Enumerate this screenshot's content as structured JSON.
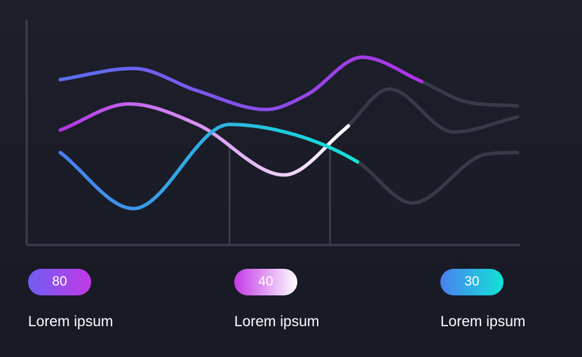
{
  "chart_data": {
    "type": "line",
    "title": "",
    "xlabel": "",
    "ylabel": "",
    "xlim": [
      0,
      10
    ],
    "ylim": [
      0,
      10
    ],
    "grid": false,
    "series": [
      {
        "id": "purple",
        "x": [
          0,
          1.6,
          3,
          4.5,
          5.4,
          6.6,
          7.9,
          8.9,
          10
        ],
        "y": [
          7.8,
          8.4,
          7.2,
          6.2,
          7.0,
          9.0,
          7.7,
          6.6,
          6.4
        ],
        "gradient": [
          "#5b6ff0",
          "#b133e6"
        ],
        "active_until": 7.9
      },
      {
        "id": "pink",
        "x": [
          0,
          1.5,
          3,
          4.9,
          6.2,
          7.2,
          8.6,
          10
        ],
        "y": [
          5.1,
          6.5,
          5.4,
          2.7,
          5.1,
          7.3,
          5.0,
          5.8
        ],
        "gradient": [
          "#b133e6",
          "#ffffff"
        ],
        "active_until": 6.3
      },
      {
        "id": "teal",
        "x": [
          0,
          1.6,
          3.7,
          5.2,
          6.5,
          7.7,
          9.3,
          10
        ],
        "y": [
          3.9,
          0.9,
          5.4,
          4.8,
          3.4,
          1.2,
          3.8,
          3.9
        ],
        "gradient": [
          "#4a7ff0",
          "#12e4d6"
        ],
        "active_until": 6.5
      }
    ],
    "markers_x": [
      3.7,
      5.9
    ]
  },
  "metrics": [
    {
      "value": "80",
      "label": "Lorem ipsum",
      "gradient": [
        "#6f5df1",
        "#c23ae6"
      ]
    },
    {
      "value": "40",
      "label": "Lorem ipsum",
      "gradient": [
        "#c23ae6",
        "#ffffff"
      ]
    },
    {
      "value": "30",
      "label": "Lorem ipsum",
      "gradient": [
        "#4a7ff0",
        "#12e4d6"
      ]
    }
  ],
  "colors": {
    "background": "#1b1d29",
    "axis": "#3b3e4c",
    "inactive_line": "#373a48"
  }
}
